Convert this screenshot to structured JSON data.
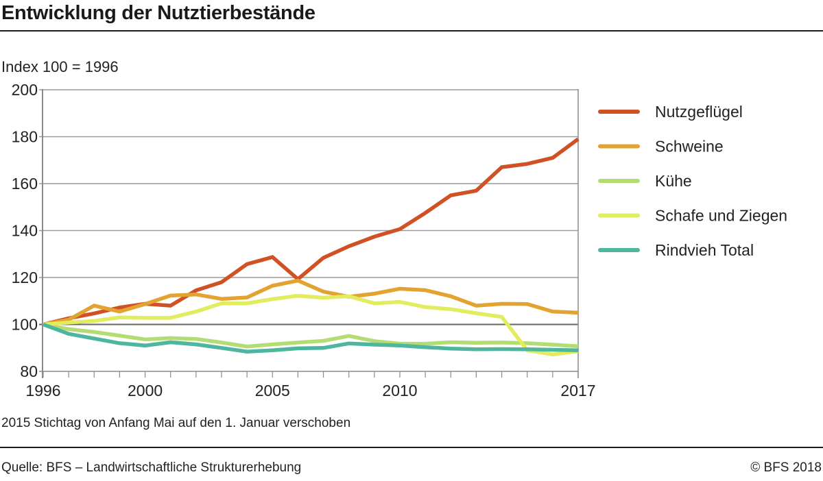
{
  "header": {
    "title": "Entwicklung der Nutztierbestände",
    "unit_label": "Index 100 = 1996"
  },
  "footer": {
    "note": "2015 Stichtag von Anfang Mai auf den 1. Januar verschoben",
    "source": "Quelle: BFS – Landwirtschaftliche Strukturerhebung",
    "copyright": "© BFS  2018"
  },
  "chart_data": {
    "type": "line",
    "title": "Entwicklung der Nutztierbestände",
    "subtitle": "Index 100 = 1996",
    "xlabel": "",
    "ylabel": "Index 100 = 1996",
    "x": [
      1996,
      1997,
      1998,
      1999,
      2000,
      2001,
      2002,
      2003,
      2004,
      2005,
      2006,
      2007,
      2008,
      2009,
      2010,
      2011,
      2012,
      2013,
      2014,
      2015,
      2016,
      2017
    ],
    "x_tick_labels": [
      "1996",
      "2000",
      "2005",
      "2010",
      "2017"
    ],
    "x_tick_label_years": [
      1996,
      2000,
      2005,
      2010,
      2017
    ],
    "xlim": [
      1996,
      2017
    ],
    "ylim": [
      80,
      200
    ],
    "y_ticks": [
      80,
      100,
      120,
      140,
      160,
      180,
      200
    ],
    "y_tick_labels": [
      "80",
      "100",
      "120",
      "140",
      "160",
      "180",
      "200"
    ],
    "grid": true,
    "reference_line": 100,
    "legend_position": "right",
    "series": [
      {
        "name": "Nutzgeflügel",
        "color": "#d05124",
        "values": [
          100,
          102.6,
          104.7,
          107.2,
          108.8,
          108,
          114.5,
          118,
          125.7,
          128.7,
          119.3,
          128.4,
          133.3,
          137.4,
          140.6,
          147.5,
          155,
          157,
          167,
          168.4,
          171,
          179
        ]
      },
      {
        "name": "Schweine",
        "color": "#e2a330",
        "values": [
          100,
          102,
          108,
          105.5,
          108.7,
          112.3,
          112.8,
          110.9,
          111.5,
          116.5,
          118.7,
          114,
          111.8,
          113.1,
          115.2,
          114.6,
          112,
          108,
          108.8,
          108.7,
          105.5,
          105
        ]
      },
      {
        "name": "Kühe",
        "color": "#b3dd73",
        "values": [
          100,
          98,
          96.8,
          95.2,
          93.6,
          94.2,
          93.8,
          92.3,
          90.6,
          91.5,
          92.3,
          93,
          95.1,
          92.9,
          91.8,
          91.8,
          92.4,
          92.2,
          92.3,
          92,
          91.4,
          90.7
        ]
      },
      {
        "name": "Schafe und Ziegen",
        "color": "#e2ec5f",
        "values": [
          100,
          100.8,
          101.5,
          103,
          102.8,
          102.8,
          105.5,
          109,
          109,
          110.8,
          112.2,
          111.4,
          112,
          109,
          109.6,
          107.4,
          106.5,
          104.8,
          103.2,
          89,
          87.2,
          88.6
        ]
      },
      {
        "name": "Rindvieh Total",
        "color": "#4eb59e",
        "values": [
          100,
          96,
          94,
          92,
          91,
          92.4,
          91.5,
          90,
          88.4,
          89,
          89.8,
          90,
          91.9,
          91.4,
          91,
          90.3,
          89.7,
          89.4,
          89.5,
          89.4,
          89.2,
          89
        ]
      }
    ]
  }
}
